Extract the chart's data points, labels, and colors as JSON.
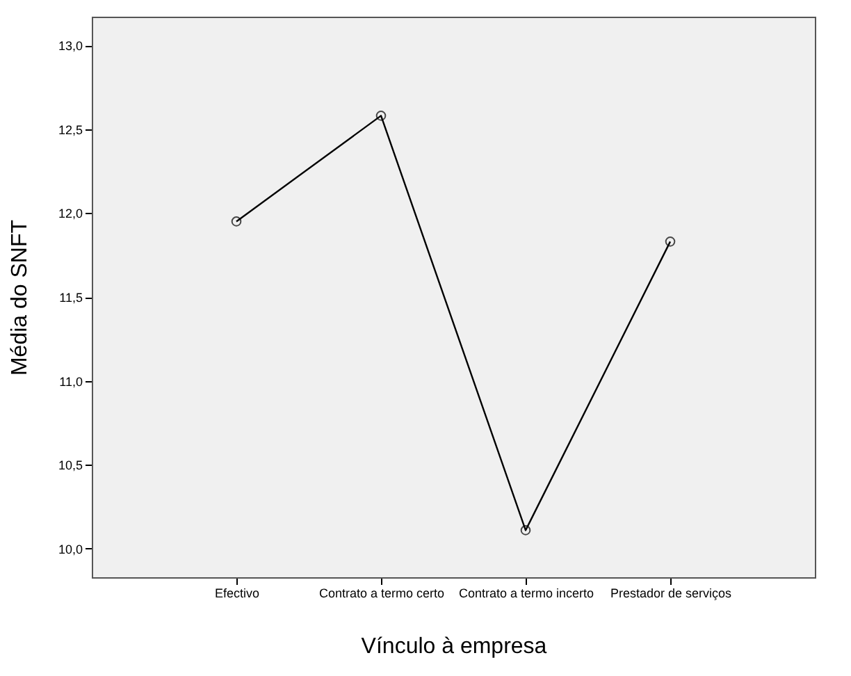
{
  "chart_data": {
    "type": "line",
    "xlabel": "Vínculo à empresa",
    "ylabel": "Média do SNFT",
    "categories": [
      "Efectivo",
      "Contrato a termo certo",
      "Contrato a termo incerto",
      "Prestador de serviços"
    ],
    "series": [
      {
        "color": "#000000",
        "values": [
          11.95,
          12.58,
          10.11,
          11.83
        ]
      }
    ],
    "ylim": [
      9.83,
      13.17
    ],
    "yticks": [
      {
        "value": 10.0,
        "label": "10,0"
      },
      {
        "value": 10.5,
        "label": "10,5"
      },
      {
        "value": 11.0,
        "label": "11,0"
      },
      {
        "value": 11.5,
        "label": "11,5"
      },
      {
        "value": 12.0,
        "label": "12,0"
      },
      {
        "value": 12.5,
        "label": "12,5"
      },
      {
        "value": 13.0,
        "label": "13,0"
      }
    ],
    "marker": "circle",
    "line_style": "solid",
    "grid": false
  }
}
